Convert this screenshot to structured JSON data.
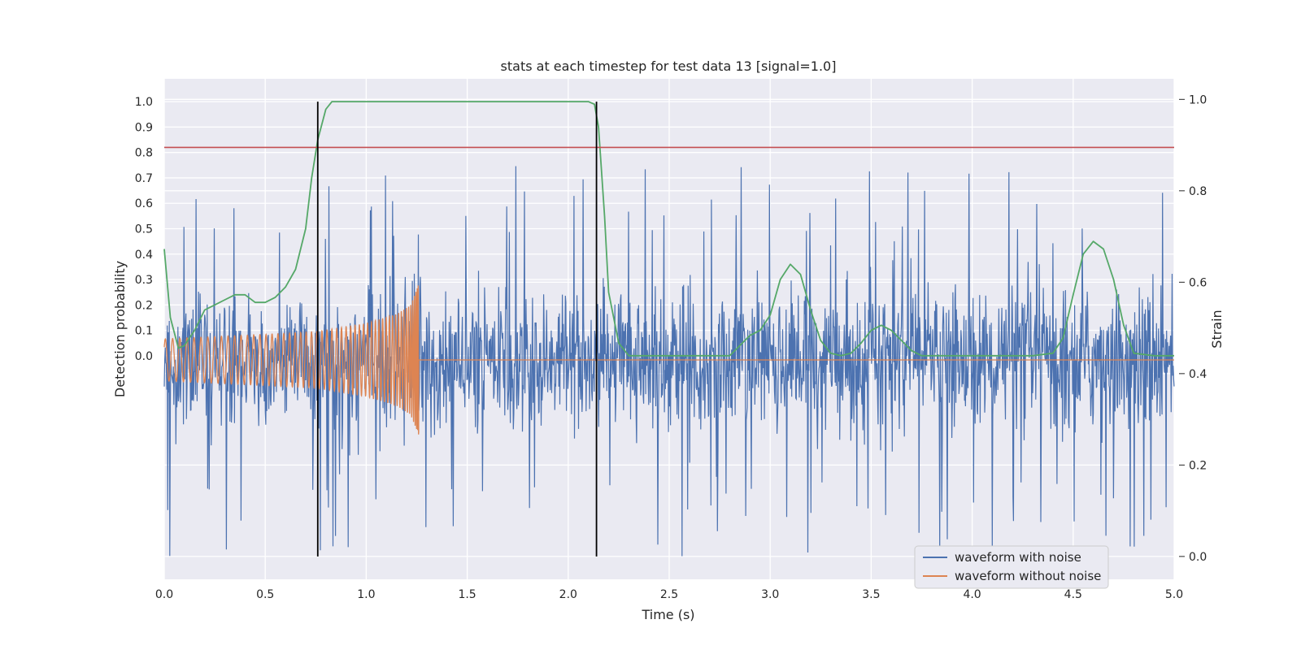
{
  "chart_data": {
    "type": "line",
    "title": "stats at each timestep for test data 13 [signal=1.0]",
    "xlabel": "Time (s)",
    "ylabel": "Detection probability",
    "y2label": "Strain",
    "xlim": [
      0.0,
      5.0
    ],
    "ylim": [
      -0.88,
      1.09
    ],
    "y2lim": [
      -0.05,
      1.045
    ],
    "xticks": [
      "0.0",
      "0.5",
      "1.0",
      "1.5",
      "2.0",
      "2.5",
      "3.0",
      "3.5",
      "4.0",
      "4.5",
      "5.0"
    ],
    "yticks": [
      "0.0",
      "0.1",
      "0.2",
      "0.3",
      "0.4",
      "0.5",
      "0.6",
      "0.7",
      "0.8",
      "0.9",
      "1.0"
    ],
    "y2ticks": [
      "0.0",
      "0.2",
      "0.4",
      "0.6",
      "0.8",
      "1.0"
    ],
    "grid": true,
    "legend_position": "lower-right",
    "background": "#eaeaf2",
    "threshold": {
      "y": 0.82,
      "color": "#c44e52"
    },
    "vertical_lines": [
      {
        "x": 0.76,
        "y_from": 0.0,
        "y_to": 1.0,
        "color": "#000000"
      },
      {
        "x": 2.14,
        "y_from": 0.0,
        "y_to": 1.0,
        "color": "#000000"
      }
    ],
    "series": [
      {
        "name": "waveform with noise",
        "color": "#4c72b0",
        "axis": "right",
        "center": 0.43,
        "sigma": 0.075,
        "range_min": -0.0,
        "range_max": 0.98,
        "samples": 2000
      },
      {
        "name": "waveform without noise",
        "color": "#dd8452",
        "axis": "right",
        "x_end": 1.26,
        "center": 0.43,
        "amplitude": [
          [
            0.0,
            0.046
          ],
          [
            0.5,
            0.056
          ],
          [
            0.76,
            0.062
          ],
          [
            1.0,
            0.08
          ],
          [
            1.15,
            0.1
          ],
          [
            1.22,
            0.12
          ],
          [
            1.255,
            0.16
          ],
          [
            1.26,
            0.18
          ]
        ]
      },
      {
        "color": "#55a868",
        "axis": "left",
        "x": [
          0.0,
          0.03,
          0.07,
          0.1,
          0.15,
          0.2,
          0.25,
          0.3,
          0.35,
          0.4,
          0.45,
          0.5,
          0.55,
          0.6,
          0.65,
          0.7,
          0.73,
          0.76,
          0.8,
          0.83,
          0.88,
          1.0,
          1.5,
          2.0,
          2.1,
          2.13,
          2.15,
          2.18,
          2.2,
          2.25,
          2.3,
          2.35,
          2.5,
          2.7,
          2.8,
          2.85,
          2.9,
          2.95,
          3.0,
          3.05,
          3.1,
          3.15,
          3.2,
          3.25,
          3.3,
          3.35,
          3.4,
          3.45,
          3.5,
          3.55,
          3.6,
          3.65,
          3.7,
          3.75,
          3.8,
          4.0,
          4.3,
          4.4,
          4.45,
          4.5,
          4.55,
          4.6,
          4.65,
          4.7,
          4.75,
          4.8,
          4.9,
          5.0
        ],
        "y": [
          0.42,
          0.15,
          0.03,
          0.04,
          0.1,
          0.18,
          0.2,
          0.22,
          0.24,
          0.24,
          0.21,
          0.21,
          0.23,
          0.27,
          0.34,
          0.5,
          0.7,
          0.85,
          0.97,
          1.0,
          1.0,
          1.0,
          1.0,
          1.0,
          1.0,
          0.99,
          0.9,
          0.55,
          0.25,
          0.05,
          0.0,
          0.0,
          0.0,
          0.0,
          0.0,
          0.04,
          0.08,
          0.1,
          0.16,
          0.3,
          0.36,
          0.32,
          0.18,
          0.06,
          0.01,
          0.0,
          0.01,
          0.05,
          0.1,
          0.12,
          0.1,
          0.06,
          0.02,
          0.0,
          0.0,
          0.0,
          0.0,
          0.01,
          0.07,
          0.24,
          0.4,
          0.45,
          0.42,
          0.3,
          0.12,
          0.01,
          0.0,
          0.0
        ]
      }
    ]
  }
}
